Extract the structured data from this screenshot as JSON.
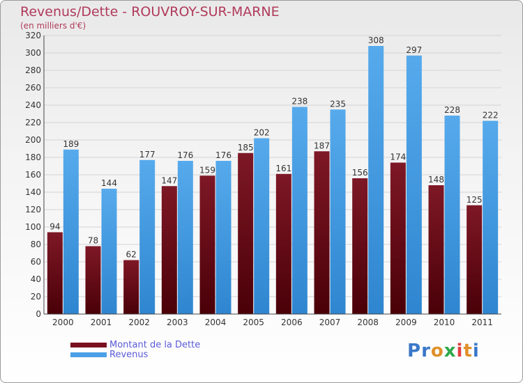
{
  "title": "Revenus/Dette - ROUVROY-SUR-MARNE",
  "subtitle": "(en milliers d'€)",
  "logo": {
    "text": "Proxiti",
    "letter_colors": [
      "#3a78c8",
      "#3a78c8",
      "#e0902a",
      "#2ea84a",
      "#e04040",
      "#e0902a",
      "#3a78c8"
    ]
  },
  "chart_data": {
    "type": "bar",
    "title": "Revenus/Dette - ROUVROY-SUR-MARNE",
    "subtitle": "(en milliers d'€)",
    "xlabel": "",
    "ylabel": "",
    "categories": [
      "2000",
      "2001",
      "2002",
      "2003",
      "2004",
      "2005",
      "2006",
      "2007",
      "2008",
      "2009",
      "2010",
      "2011"
    ],
    "series": [
      {
        "name": "Montant de la Dette",
        "color": "#7a1020",
        "values": [
          94,
          78,
          62,
          147,
          159,
          185,
          161,
          187,
          156,
          174,
          148,
          125
        ]
      },
      {
        "name": "Revenus",
        "color": "#4aa0e6",
        "values": [
          189,
          144,
          177,
          176,
          176,
          202,
          238,
          235,
          308,
          297,
          228,
          222
        ]
      }
    ],
    "ylim": [
      0,
      320
    ],
    "yticks": [
      0,
      20,
      40,
      60,
      80,
      100,
      120,
      140,
      160,
      180,
      200,
      220,
      240,
      260,
      280,
      300,
      320
    ],
    "grid": true,
    "legend": "bottom-left"
  }
}
